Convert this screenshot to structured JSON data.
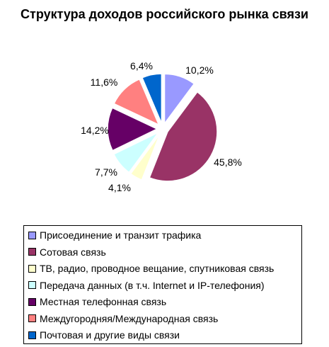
{
  "chart_data": {
    "type": "pie",
    "title": "Структура доходов российского рынка связи",
    "legend_position": "bottom",
    "slices": [
      {
        "label": "Присоединение и транзит трафика",
        "value": 10.2,
        "display": "10,2%",
        "color": "#9999ff"
      },
      {
        "label": "Сотовая связь",
        "value": 45.8,
        "display": "45,8%",
        "color": "#993366"
      },
      {
        "label": "ТВ, радио, проводное вещание, спутниковая связь",
        "value": 4.1,
        "display": "4,1%",
        "color": "#ffffcc"
      },
      {
        "label": "Передача данных (в т.ч. Internet и IP-телефония)",
        "value": 7.7,
        "display": "7,7%",
        "color": "#ccffff"
      },
      {
        "label": "Местная телефонная связь",
        "value": 14.2,
        "display": "14,2%",
        "color": "#660066"
      },
      {
        "label": "Междугородняя/Международная связь",
        "value": 11.6,
        "display": "11,6%",
        "color": "#ff8080"
      },
      {
        "label": "Почтовая и другие виды связи",
        "value": 6.4,
        "display": "6,4%",
        "color": "#0066cc"
      }
    ]
  }
}
